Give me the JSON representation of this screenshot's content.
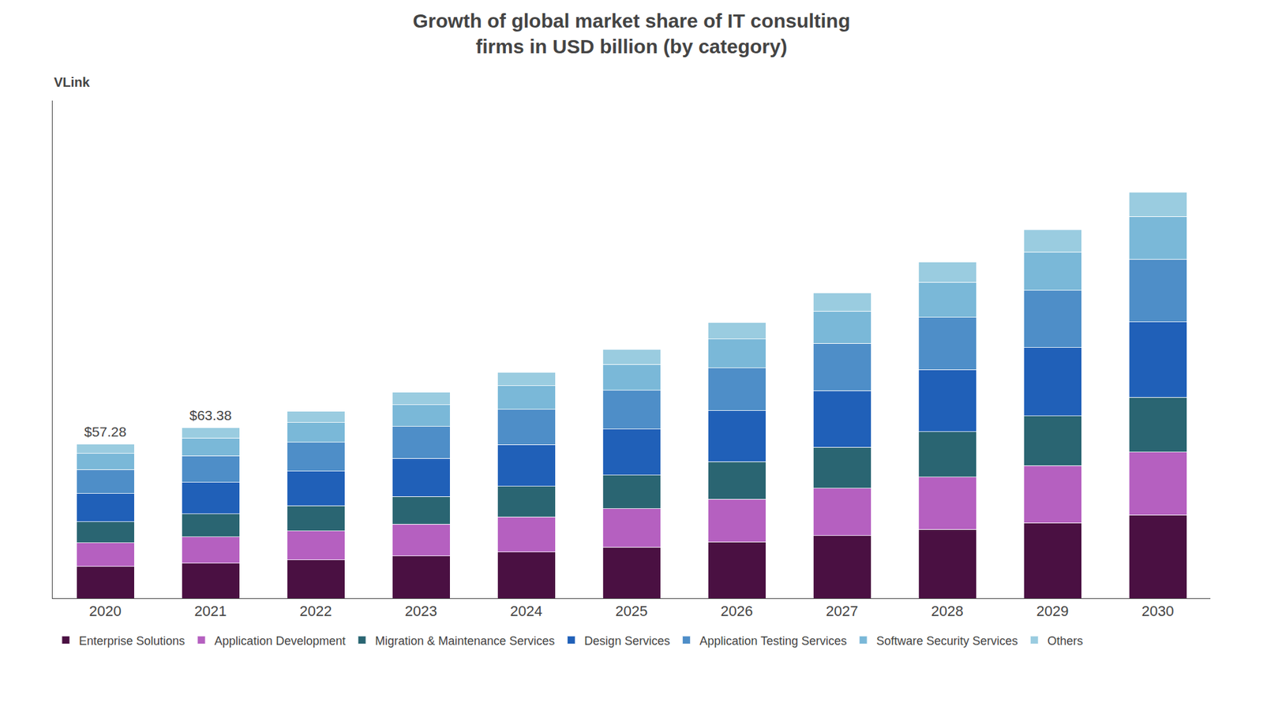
{
  "chart_data": {
    "type": "bar",
    "title": "Growth of global market share of IT consulting\nfirms in USD billion (by category)",
    "categories": [
      "2020",
      "2021",
      "2022",
      "2023",
      "2024",
      "2025",
      "2026",
      "2027",
      "2028",
      "2029",
      "2030"
    ],
    "stacked": true,
    "series": [
      {
        "name": "Enterprise Solutions",
        "color": "#4a1042",
        "values": [
          11.7424,
          12.9929,
          14.2475,
          15.6825,
          17.22,
          18.9625,
          21.0125,
          23.2675,
          25.625,
          28.085,
          30.955
        ]
      },
      {
        "name": "Application Development",
        "color": "#b560c0",
        "values": [
          8.8784,
          9.8239,
          10.7725,
          11.8575,
          13.02,
          14.3375,
          15.8875,
          17.5925,
          19.375,
          21.235,
          23.405
        ]
      },
      {
        "name": "Migration & Maintenance Services",
        "color": "#2a6572",
        "values": [
          7.7328,
          8.5563,
          9.3825,
          10.3275,
          11.34,
          12.4875,
          13.8375,
          15.3225,
          16.875,
          18.495,
          20.385
        ]
      },
      {
        "name": "Design Services",
        "color": "#2060b8",
        "values": [
          10.5968,
          11.7253,
          12.8575,
          14.1525,
          15.54,
          17.1125,
          18.9625,
          20.9975,
          23.125,
          25.345,
          27.935
        ]
      },
      {
        "name": "Application Testing Services",
        "color": "#4e8ec8",
        "values": [
          8.8784,
          9.8239,
          10.7725,
          11.8575,
          13.02,
          14.3375,
          15.8875,
          17.5925,
          19.375,
          21.235,
          23.405
        ]
      },
      {
        "name": "Software Security Services",
        "color": "#7ab8d8",
        "values": [
          6.0144,
          6.6549,
          7.2975,
          8.0325,
          8.82,
          9.7125,
          10.7625,
          11.9175,
          13.125,
          14.385,
          15.855
        ]
      },
      {
        "name": "Others",
        "color": "#9acce0",
        "values": [
          3.4368,
          3.8028,
          4.17,
          4.59,
          5.04,
          5.55,
          6.15,
          6.81,
          7.5,
          8.22,
          9.06
        ]
      }
    ],
    "annotations": [
      {
        "category": "2020",
        "value": 57.28,
        "text": "$57.28"
      },
      {
        "category": "2021",
        "value": 63.38,
        "text": "$63.38"
      },
      {
        "text": "VLink"
      }
    ],
    "ylim": [
      0,
      185
    ],
    "yticks": [],
    "tick_labels": "x",
    "grid": false,
    "legend": "bottom"
  }
}
